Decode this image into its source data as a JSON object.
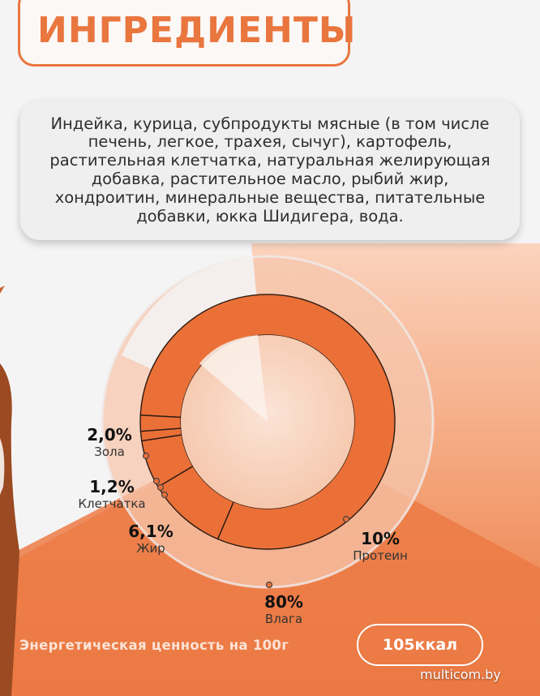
{
  "header": {
    "title": "ИНГРЕДИЕНТЫ"
  },
  "ingredients": {
    "lines": [
      "Индейка, курица, субпродукты мясные (в том числе",
      "печень, легкое, трахея, сычуг), картофель,",
      "растительная клетчатка, натуральная желирующая",
      "добавка, растительное масло, рыбий жир,",
      "хондроитин, минеральные вещества, питательные",
      "добавки, юкка Шидигера, вода."
    ]
  },
  "chart_data": {
    "type": "pie",
    "slices": [
      {
        "label": "Влага",
        "value_label": "80%",
        "value": 80
      },
      {
        "label": "Протеин",
        "value_label": "10%",
        "value": 10
      },
      {
        "label": "Жир",
        "value_label": "6,1%",
        "value": 6.1
      },
      {
        "label": "Клетчатка",
        "value_label": "1,2%",
        "value": 1.2
      },
      {
        "label": "Зола",
        "value_label": "2,0%",
        "value": 2.0
      }
    ]
  },
  "energy": {
    "label": "Энергетическая ценность на 100г",
    "value": "105ккал"
  },
  "watermark": "multicom.by",
  "colors": {
    "accent": "#e9763e",
    "ring": "#ea7038",
    "light": "#f7d2be"
  }
}
